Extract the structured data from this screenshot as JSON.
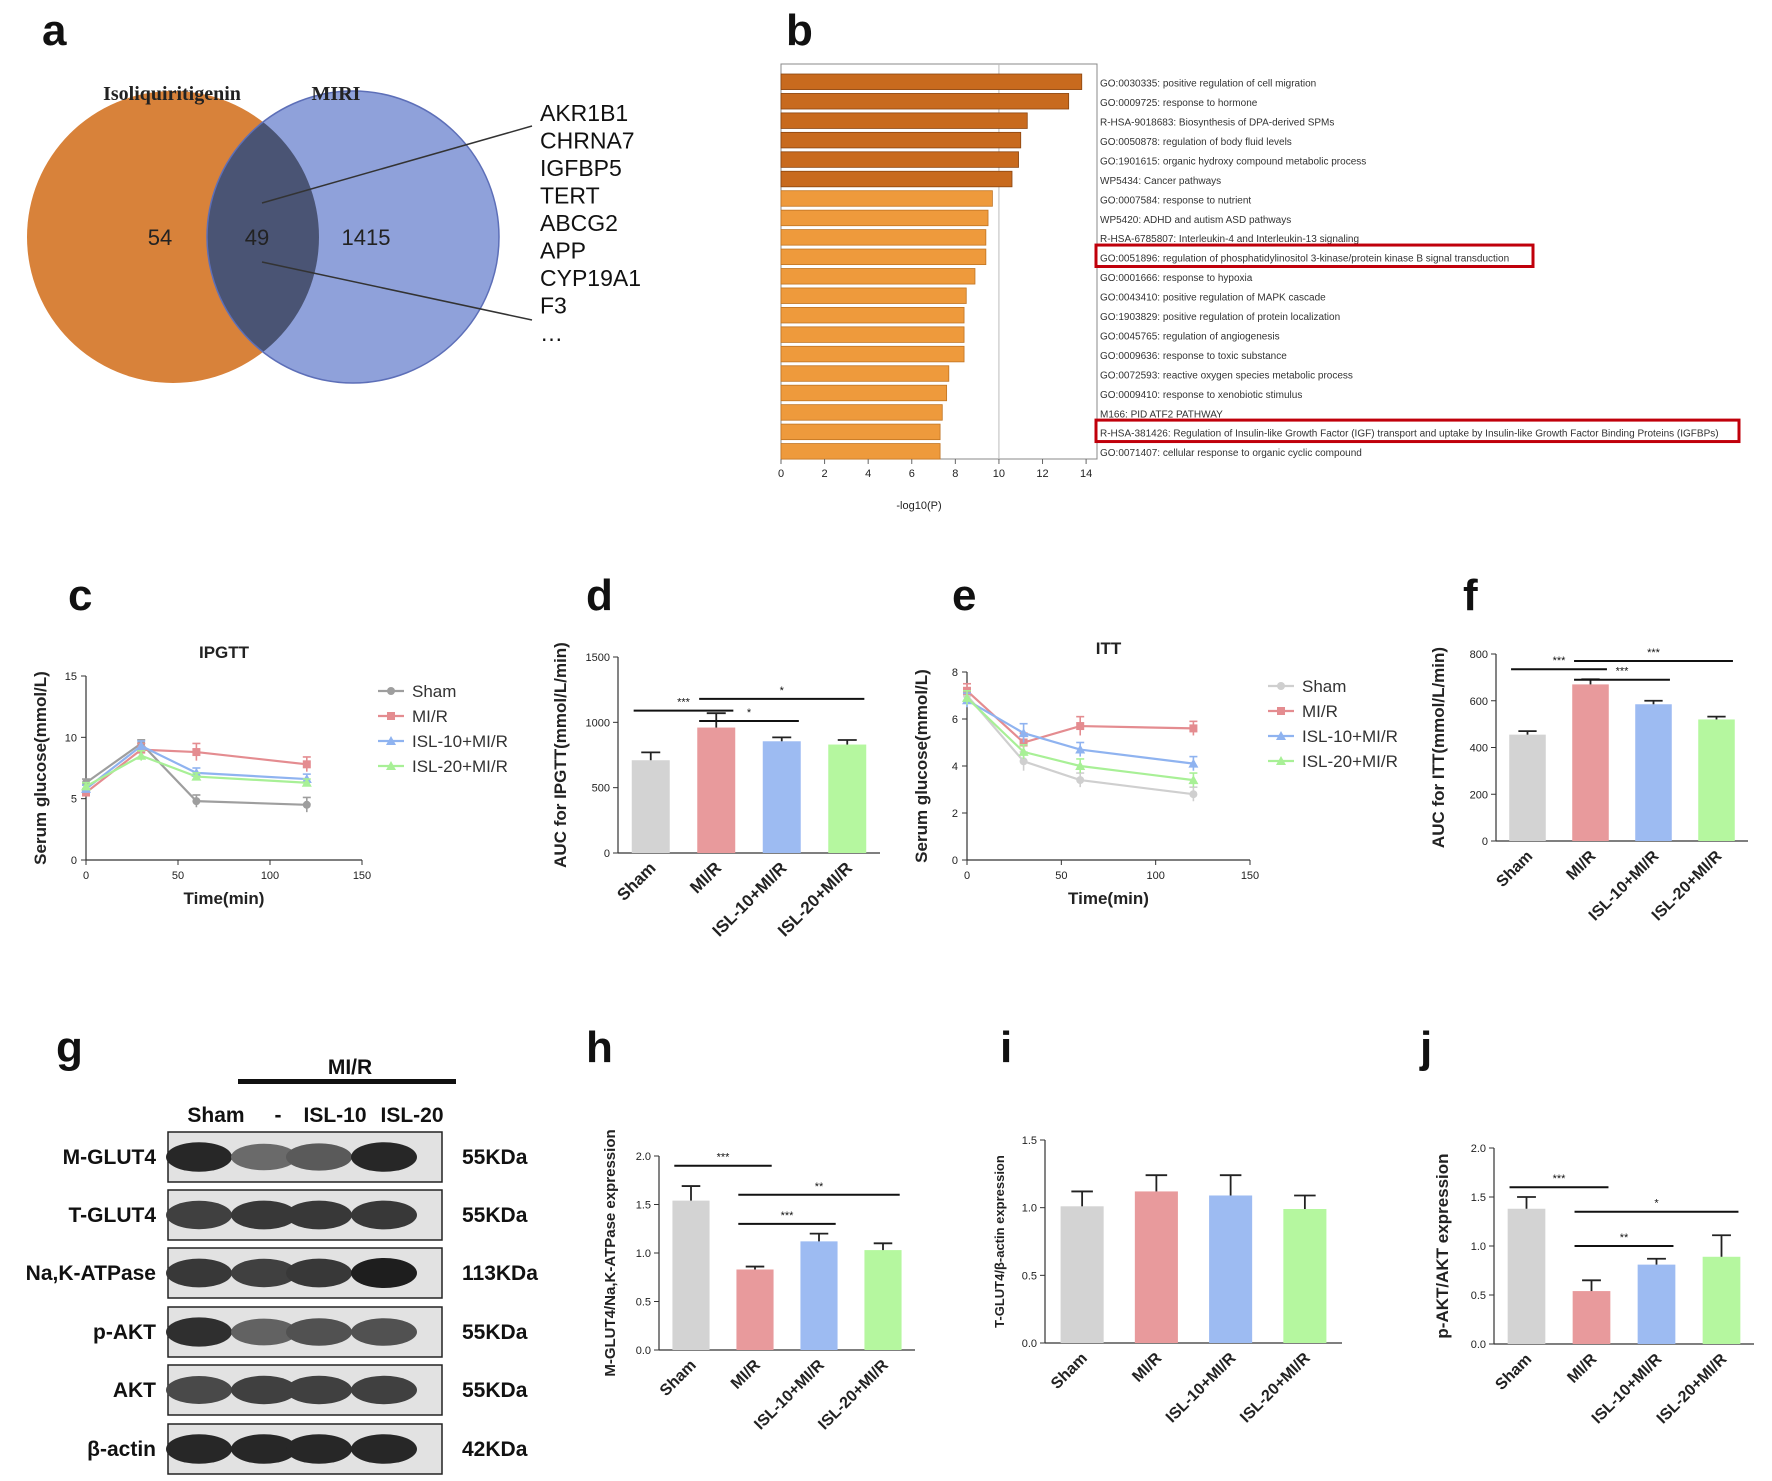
{
  "panel_labels": [
    "a",
    "b",
    "c",
    "d",
    "e",
    "f",
    "g",
    "h",
    "i",
    "j"
  ],
  "colors": {
    "orange": "#D8823A",
    "purple": "#8FA1DA",
    "overlap": "#4A5474",
    "gray": "#D3D3D3",
    "red": "#E89A9C",
    "blue": "#9DBBF2",
    "green": "#B5F79F",
    "highlight": "#C0000B"
  },
  "venn": {
    "left_title": "Isoliquiritigenin",
    "right_title": "MIRI",
    "left_only": "54",
    "overlap": "49",
    "right_only": "1415",
    "genes": [
      "AKR1B1",
      "CHRNA7",
      "IGFBP5",
      "TERT",
      "ABCG2",
      "APP",
      "CYP19A1",
      "F3",
      "…"
    ],
    "highlight_gene": "IGFBP5"
  },
  "chart_data": [
    {
      "id": "b",
      "type": "bar",
      "orientation": "horizontal",
      "xlabel": "-log10(P)",
      "xlim": [
        0,
        14.5
      ],
      "xticks": [
        0,
        2,
        4,
        6,
        8,
        10,
        12,
        14
      ],
      "categories": [
        "GO:0030335: positive regulation of cell migration",
        "GO:0009725: response to hormone",
        "R-HSA-9018683: Biosynthesis of DPA-derived SPMs",
        "GO:0050878: regulation of body fluid levels",
        "GO:1901615: organic hydroxy compound metabolic process",
        "WP5434: Cancer pathways",
        "GO:0007584: response to nutrient",
        "WP5420: ADHD and autism ASD pathways",
        "R-HSA-6785807: Interleukin-4 and Interleukin-13 signaling",
        "GO:0051896: regulation of phosphatidylinositol 3-kinase/protein kinase B signal transduction",
        "GO:0001666: response to hypoxia",
        "GO:0043410: positive regulation of MAPK cascade",
        "GO:1903829: positive regulation of protein localization",
        "GO:0045765: regulation of angiogenesis",
        "GO:0009636: response to toxic substance",
        "GO:0072593: reactive oxygen species metabolic process",
        "GO:0009410: response to xenobiotic stimulus",
        "M166: PID ATF2 PATHWAY",
        "R-HSA-381426: Regulation of Insulin-like Growth Factor (IGF) transport and uptake by Insulin-like Growth Factor Binding Proteins (IGFBPs)",
        "GO:0071407: cellular response to organic cyclic compound"
      ],
      "values": [
        13.8,
        13.2,
        11.3,
        11.0,
        10.9,
        10.6,
        9.7,
        9.5,
        9.4,
        9.4,
        8.9,
        8.5,
        8.4,
        8.4,
        8.4,
        7.7,
        7.6,
        7.4,
        7.3,
        7.3
      ],
      "highlighted": [
        9,
        18
      ]
    },
    {
      "id": "c",
      "type": "line",
      "title": "IPGTT",
      "xlabel": "Time(min)",
      "ylabel": "Serum glucose(mmol/L)",
      "xlim": [
        0,
        150
      ],
      "ylim": [
        0,
        15
      ],
      "xticks": [
        0,
        50,
        100,
        150
      ],
      "yticks": [
        0,
        5,
        10,
        15
      ],
      "x": [
        0,
        30,
        60,
        120
      ],
      "series": [
        {
          "name": "Sham",
          "values": [
            6.3,
            9.5,
            4.8,
            4.5
          ],
          "err": [
            0.3,
            0.3,
            0.5,
            0.6
          ]
        },
        {
          "name": "MI/R",
          "values": [
            5.5,
            9.0,
            8.8,
            7.8
          ],
          "err": [
            0.3,
            0.5,
            0.7,
            0.6
          ]
        },
        {
          "name": "ISL-10+MI/R",
          "values": [
            5.8,
            9.3,
            7.1,
            6.6
          ],
          "err": [
            0.3,
            0.4,
            0.4,
            0.4
          ]
        },
        {
          "name": "ISL-20+MI/R",
          "values": [
            6.0,
            8.5,
            6.8,
            6.3
          ],
          "err": [
            0.3,
            0.4,
            0.3,
            0.3
          ]
        }
      ]
    },
    {
      "id": "d",
      "type": "bar",
      "ylabel": "AUC for IPGTT(mmol/L/min)",
      "ylim": [
        0,
        1500
      ],
      "yticks": [
        0,
        500,
        1000,
        1500
      ],
      "categories": [
        "Sham",
        "MI/R",
        "ISL-10+MI/R",
        "ISL-20+MI/R"
      ],
      "values": [
        710,
        960,
        855,
        830
      ],
      "err": [
        60,
        110,
        30,
        35
      ],
      "sig": [
        {
          "from": 0,
          "to": 1,
          "label": "***",
          "y": 1090
        },
        {
          "from": 1,
          "to": 2,
          "label": "*",
          "y": 1010
        },
        {
          "from": 1,
          "to": 3,
          "label": "*",
          "y": 1180
        }
      ]
    },
    {
      "id": "e",
      "type": "line",
      "title": "ITT",
      "xlabel": "Time(min)",
      "ylabel": "Serum glucose(mmol/L)",
      "xlim": [
        0,
        150
      ],
      "ylim": [
        0,
        8
      ],
      "xticks": [
        0,
        50,
        100,
        150
      ],
      "yticks": [
        0,
        2,
        4,
        6,
        8
      ],
      "x": [
        0,
        30,
        60,
        120
      ],
      "series": [
        {
          "name": "Sham",
          "values": [
            7.0,
            4.2,
            3.4,
            2.8
          ],
          "err": [
            0.3,
            0.4,
            0.3,
            0.3
          ]
        },
        {
          "name": "MI/R",
          "values": [
            7.2,
            5.0,
            5.7,
            5.6
          ],
          "err": [
            0.3,
            0.4,
            0.4,
            0.3
          ]
        },
        {
          "name": "ISL-10+MI/R",
          "values": [
            6.8,
            5.4,
            4.7,
            4.1
          ],
          "err": [
            0.3,
            0.4,
            0.3,
            0.3
          ]
        },
        {
          "name": "ISL-20+MI/R",
          "values": [
            6.9,
            4.6,
            4.0,
            3.4
          ],
          "err": [
            0.3,
            0.3,
            0.3,
            0.3
          ]
        }
      ]
    },
    {
      "id": "f",
      "type": "bar",
      "ylabel": "AUC for ITT(mmol/L/min)",
      "ylim": [
        0,
        800
      ],
      "yticks": [
        0,
        200,
        400,
        600,
        800
      ],
      "categories": [
        "Sham",
        "MI/R",
        "ISL-10+MI/R",
        "ISL-20+MI/R"
      ],
      "values": [
        455,
        670,
        585,
        520
      ],
      "err": [
        15,
        22,
        15,
        12
      ],
      "sig": [
        {
          "from": 0,
          "to": 1,
          "label": "***",
          "y": 735
        },
        {
          "from": 1,
          "to": 2,
          "label": "***",
          "y": 690
        },
        {
          "from": 1,
          "to": 3,
          "label": "***",
          "y": 770
        }
      ]
    },
    {
      "id": "h",
      "type": "bar",
      "ylabel": "M-GLUT4/Na,K-ATPase expression",
      "ylim": [
        0,
        2.0
      ],
      "yticks": [
        0.0,
        0.5,
        1.0,
        1.5,
        2.0
      ],
      "categories": [
        "Sham",
        "MI/R",
        "ISL-10+MI/R",
        "ISL-20+MI/R"
      ],
      "values": [
        1.54,
        0.83,
        1.12,
        1.03
      ],
      "err": [
        0.15,
        0.03,
        0.08,
        0.07
      ],
      "sig": [
        {
          "from": 0,
          "to": 1,
          "label": "***",
          "y": 1.9
        },
        {
          "from": 1,
          "to": 2,
          "label": "***",
          "y": 1.3
        },
        {
          "from": 1,
          "to": 3,
          "label": "**",
          "y": 1.6
        }
      ]
    },
    {
      "id": "i",
      "type": "bar",
      "ylabel": "T-GLUT4/β-actin expression",
      "ylim": [
        0,
        1.5
      ],
      "yticks": [
        0.0,
        0.5,
        1.0,
        1.5
      ],
      "categories": [
        "Sham",
        "MI/R",
        "ISL-10+MI/R",
        "ISL-20+MI/R"
      ],
      "values": [
        1.01,
        1.12,
        1.09,
        0.99
      ],
      "err": [
        0.11,
        0.12,
        0.15,
        0.1
      ],
      "sig": []
    },
    {
      "id": "j",
      "type": "bar",
      "ylabel": "p-AKT/AKT expression",
      "ylim": [
        0,
        2.0
      ],
      "yticks": [
        0.0,
        0.5,
        1.0,
        1.5,
        2.0
      ],
      "categories": [
        "Sham",
        "MI/R",
        "ISL-10+MI/R",
        "ISL-20+MI/R"
      ],
      "values": [
        1.38,
        0.54,
        0.81,
        0.89
      ],
      "err": [
        0.12,
        0.11,
        0.06,
        0.22
      ],
      "sig": [
        {
          "from": 0,
          "to": 1,
          "label": "***",
          "y": 1.6
        },
        {
          "from": 1,
          "to": 2,
          "label": "**",
          "y": 1.0
        },
        {
          "from": 1,
          "to": 3,
          "label": "*",
          "y": 1.35
        }
      ]
    }
  ],
  "western": {
    "group_label": "MI/R",
    "lane_labels": [
      "Sham",
      "-",
      "ISL-10",
      "ISL-20"
    ],
    "rows": [
      {
        "name": "M-GLUT4",
        "size": "55KDa",
        "intensity": [
          0.95,
          0.55,
          0.65,
          0.95
        ]
      },
      {
        "name": "T-GLUT4",
        "size": "55KDa",
        "intensity": [
          0.8,
          0.85,
          0.85,
          0.85
        ]
      },
      {
        "name": "Na,K-ATPase",
        "size": "113KDa",
        "intensity": [
          0.85,
          0.8,
          0.85,
          1.0
        ]
      },
      {
        "name": "p-AKT",
        "size": "55KDa",
        "intensity": [
          0.9,
          0.6,
          0.7,
          0.7
        ]
      },
      {
        "name": "AKT",
        "size": "55KDa",
        "intensity": [
          0.75,
          0.8,
          0.8,
          0.8
        ]
      },
      {
        "name": "β-actin",
        "size": "42KDa",
        "intensity": [
          0.95,
          0.95,
          0.95,
          0.95
        ]
      }
    ]
  }
}
